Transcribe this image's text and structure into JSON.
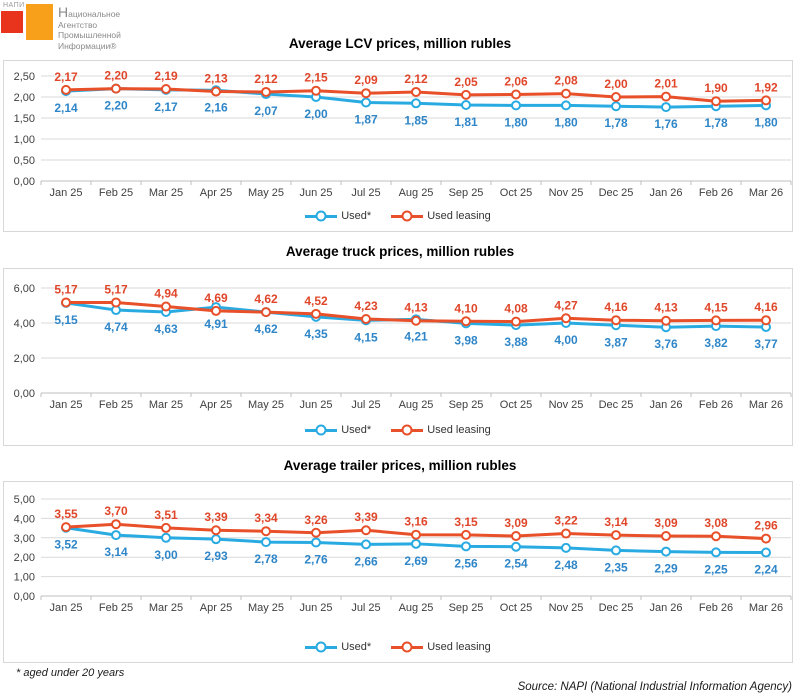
{
  "logo": {
    "napi_text": "НАПИ",
    "org_lines": [
      "Национальное",
      "Агентство",
      "Промышленной",
      "Информации®"
    ],
    "red_color": "#e8341c",
    "orange_color": "#f9a01b"
  },
  "footnote": "* aged under 20 years",
  "source": "Source: NAPI (National Industrial Information Agency)",
  "colors": {
    "grid": "#d9d9d9",
    "axis": "#bfbfbf",
    "tick_text": "#404040",
    "title": "#000000"
  },
  "chart_data": [
    {
      "type": "line",
      "title": "Average LCV prices, million rubles",
      "categories": [
        "Jan 25",
        "Feb 25",
        "Mar 25",
        "Apr 25",
        "May 25",
        "Jun 25",
        "Jul 25",
        "Aug 25",
        "Sep 25",
        "Oct 25",
        "Nov 25",
        "Dec 25",
        "Jan 26",
        "Feb 26",
        "Mar 26"
      ],
      "ylim": [
        0,
        2.5
      ],
      "yticks": [
        {
          "v": 0,
          "label": "0,00"
        },
        {
          "v": 0.5,
          "label": "0,50"
        },
        {
          "v": 1,
          "label": "1,00"
        },
        {
          "v": 1.5,
          "label": "1,50"
        },
        {
          "v": 2,
          "label": "2,00"
        },
        {
          "v": 2.5,
          "label": "2,50"
        }
      ],
      "legend_position": "bottom",
      "series": [
        {
          "name": "Used*",
          "color": "#29abe2",
          "label_color": "#2e86c8",
          "label_position": "below",
          "values": [
            2.14,
            2.2,
            2.17,
            2.16,
            2.07,
            2.0,
            1.87,
            1.85,
            1.81,
            1.8,
            1.8,
            1.78,
            1.76,
            1.78,
            1.8
          ],
          "labels": [
            "2,14",
            "2,20",
            "2,17",
            "2,16",
            "2,07",
            "2,00",
            "1,87",
            "1,85",
            "1,81",
            "1,80",
            "1,80",
            "1,78",
            "1,76",
            "1,78",
            "1,80"
          ]
        },
        {
          "name": "Used leasing",
          "color": "#e8502a",
          "label_color": "#e0462a",
          "label_position": "above",
          "values": [
            2.17,
            2.2,
            2.19,
            2.13,
            2.12,
            2.15,
            2.09,
            2.12,
            2.05,
            2.06,
            2.08,
            2.0,
            2.01,
            1.9,
            1.92
          ],
          "labels": [
            "2,17",
            "2,20",
            "2,19",
            "2,13",
            "2,12",
            "2,15",
            "2,09",
            "2,12",
            "2,05",
            "2,06",
            "2,08",
            "2,00",
            "2,01",
            "1,90",
            "1,92"
          ]
        }
      ]
    },
    {
      "type": "line",
      "title": "Average truck prices, million rubles",
      "categories": [
        "Jan 25",
        "Feb 25",
        "Mar 25",
        "Apr 25",
        "May 25",
        "Jun 25",
        "Jul 25",
        "Aug 25",
        "Sep 25",
        "Oct 25",
        "Nov 25",
        "Dec 25",
        "Jan 26",
        "Feb 26",
        "Mar 26"
      ],
      "ylim": [
        0,
        6
      ],
      "yticks": [
        {
          "v": 0,
          "label": "0,00"
        },
        {
          "v": 2,
          "label": "2,00"
        },
        {
          "v": 4,
          "label": "4,00"
        },
        {
          "v": 6,
          "label": "6,00"
        }
      ],
      "legend_position": "bottom",
      "series": [
        {
          "name": "Used*",
          "color": "#29abe2",
          "label_color": "#2e86c8",
          "label_position": "below",
          "values": [
            5.15,
            4.74,
            4.63,
            4.91,
            4.62,
            4.35,
            4.15,
            4.21,
            3.98,
            3.88,
            4.0,
            3.87,
            3.76,
            3.82,
            3.77
          ],
          "labels": [
            "5,15",
            "4,74",
            "4,63",
            "4,91",
            "4,62",
            "4,35",
            "4,15",
            "4,21",
            "3,98",
            "3,88",
            "4,00",
            "3,87",
            "3,76",
            "3,82",
            "3,77"
          ]
        },
        {
          "name": "Used leasing",
          "color": "#e8502a",
          "label_color": "#e0462a",
          "label_position": "above",
          "values": [
            5.17,
            5.17,
            4.94,
            4.69,
            4.62,
            4.52,
            4.23,
            4.13,
            4.1,
            4.08,
            4.27,
            4.16,
            4.13,
            4.15,
            4.16
          ],
          "labels": [
            "5,17",
            "5,17",
            "4,94",
            "4,69",
            "4,62",
            "4,52",
            "4,23",
            "4,13",
            "4,10",
            "4,08",
            "4,27",
            "4,16",
            "4,13",
            "4,15",
            "4,16"
          ]
        }
      ]
    },
    {
      "type": "line",
      "title": "Average trailer prices, million rubles",
      "categories": [
        "Jan 25",
        "Feb 25",
        "Mar 25",
        "Apr 25",
        "May 25",
        "Jun 25",
        "Jul 25",
        "Aug 25",
        "Sep 25",
        "Oct 25",
        "Nov 25",
        "Dec 25",
        "Jan 26",
        "Feb 26",
        "Mar 26"
      ],
      "ylim": [
        0,
        5
      ],
      "yticks": [
        {
          "v": 0,
          "label": "0,00"
        },
        {
          "v": 1,
          "label": "1,00"
        },
        {
          "v": 2,
          "label": "2,00"
        },
        {
          "v": 3,
          "label": "3,00"
        },
        {
          "v": 4,
          "label": "4,00"
        },
        {
          "v": 5,
          "label": "5,00"
        }
      ],
      "legend_position": "bottom",
      "series": [
        {
          "name": "Used*",
          "color": "#29abe2",
          "label_color": "#2e86c8",
          "label_position": "below",
          "values": [
            3.52,
            3.14,
            3.0,
            2.93,
            2.78,
            2.76,
            2.66,
            2.69,
            2.56,
            2.54,
            2.48,
            2.35,
            2.29,
            2.25,
            2.24
          ],
          "labels": [
            "3,52",
            "3,14",
            "3,00",
            "2,93",
            "2,78",
            "2,76",
            "2,66",
            "2,69",
            "2,56",
            "2,54",
            "2,48",
            "2,35",
            "2,29",
            "2,25",
            "2,24"
          ]
        },
        {
          "name": "Used leasing",
          "color": "#e8502a",
          "label_color": "#e0462a",
          "label_position": "above",
          "values": [
            3.55,
            3.7,
            3.51,
            3.39,
            3.34,
            3.26,
            3.39,
            3.16,
            3.15,
            3.09,
            3.22,
            3.14,
            3.09,
            3.08,
            2.96
          ],
          "labels": [
            "3,55",
            "3,70",
            "3,51",
            "3,39",
            "3,34",
            "3,26",
            "3,39",
            "3,16",
            "3,15",
            "3,09",
            "3,22",
            "3,14",
            "3,09",
            "3,08",
            "2,96"
          ]
        }
      ]
    }
  ]
}
